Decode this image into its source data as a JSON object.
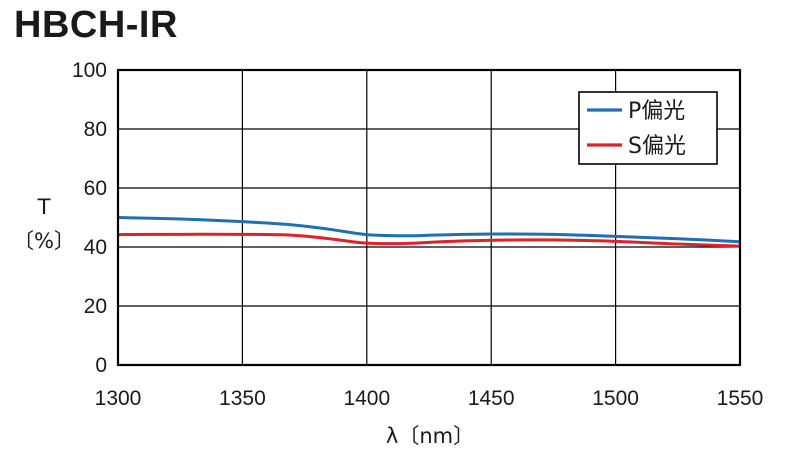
{
  "chart_data": {
    "type": "line",
    "title": "HBCH-IR",
    "xlabel": "λ〔nm〕",
    "ylabel_line1": "T",
    "ylabel_line2": "〔%〕",
    "xlim": [
      1300,
      1550
    ],
    "ylim": [
      0,
      100
    ],
    "x_ticks": [
      "1300",
      "1350",
      "1400",
      "1450",
      "1500",
      "1550"
    ],
    "y_ticks": [
      "0",
      "20",
      "40",
      "60",
      "80",
      "100"
    ],
    "grid": true,
    "legend_position": "top-right",
    "series": [
      {
        "name": "P偏光",
        "color": "#1f6fb4",
        "x": [
          1300,
          1325,
          1350,
          1370,
          1385,
          1400,
          1415,
          1430,
          1450,
          1475,
          1500,
          1525,
          1550
        ],
        "y": [
          50.0,
          49.5,
          48.6,
          47.5,
          46.0,
          44.2,
          43.8,
          44.1,
          44.4,
          44.3,
          43.6,
          42.8,
          41.8
        ]
      },
      {
        "name": "S偏光",
        "color": "#e0202a",
        "x": [
          1300,
          1325,
          1350,
          1370,
          1385,
          1400,
          1415,
          1430,
          1450,
          1475,
          1500,
          1525,
          1550
        ],
        "y": [
          44.2,
          44.3,
          44.3,
          44.0,
          42.8,
          41.3,
          41.2,
          41.8,
          42.3,
          42.4,
          41.9,
          41.0,
          40.3
        ]
      }
    ]
  }
}
